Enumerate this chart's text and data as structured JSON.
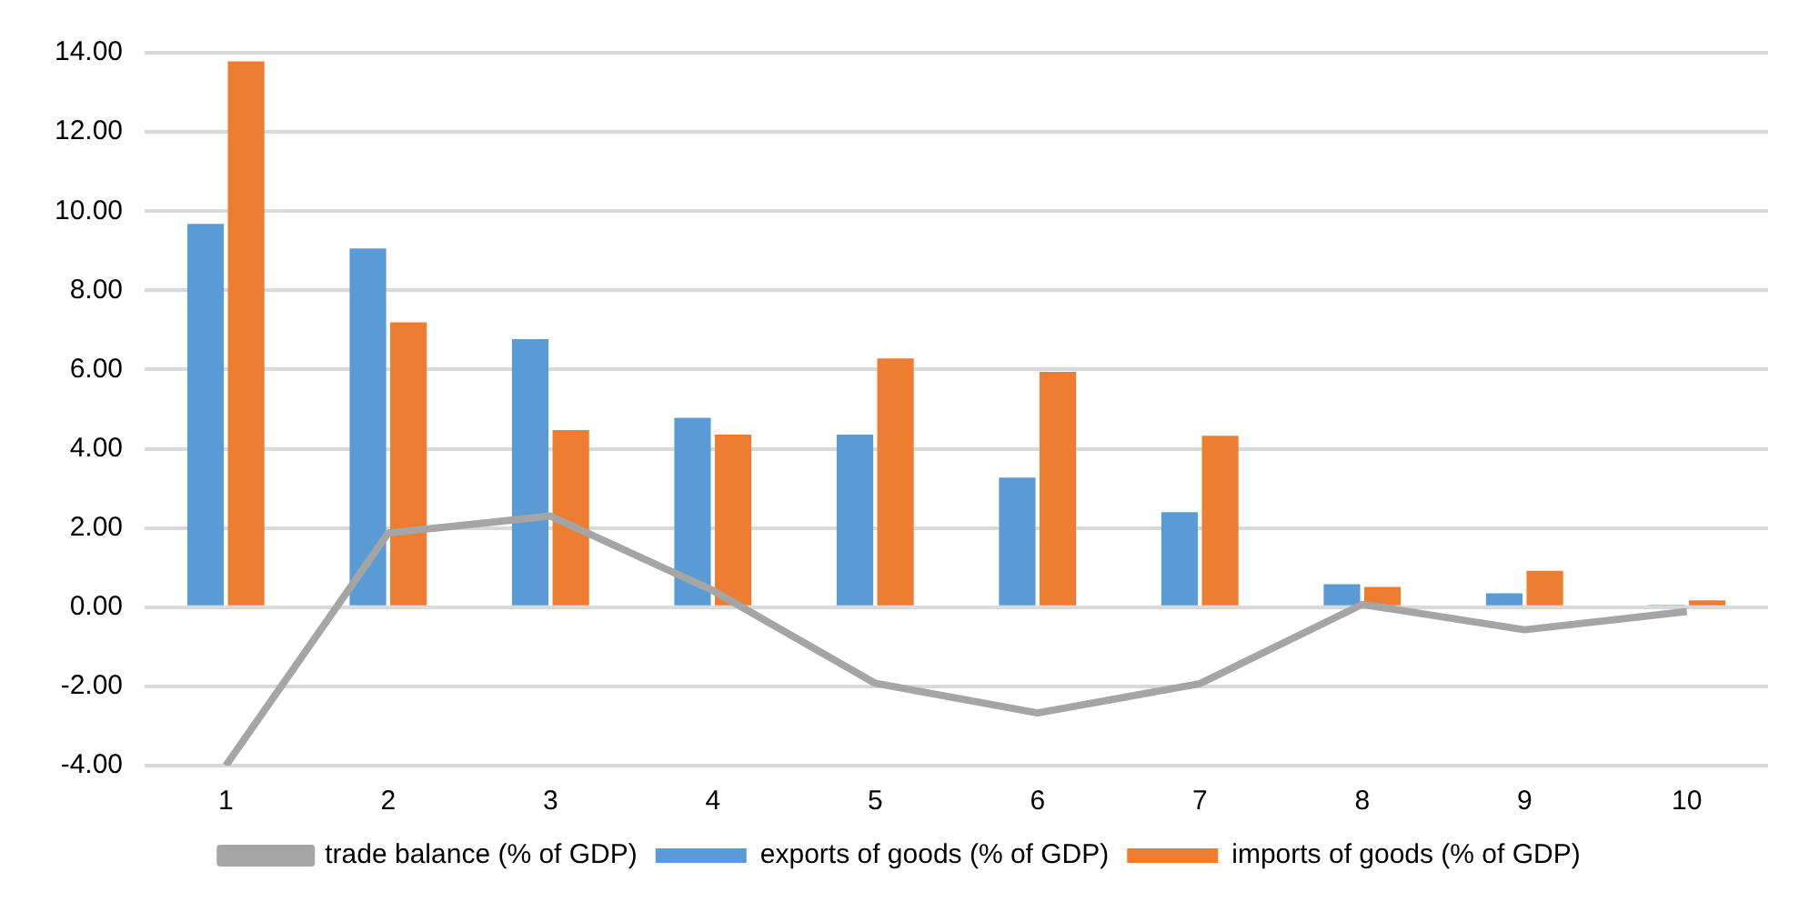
{
  "chart_data": {
    "type": "bar",
    "categories": [
      "1",
      "2",
      "3",
      "4",
      "5",
      "6",
      "7",
      "8",
      "9",
      "10"
    ],
    "series": [
      {
        "name": "exports of goods (% of GDP)",
        "color": "#5b9bd5",
        "values": [
          9.68,
          9.06,
          6.77,
          4.78,
          4.36,
          3.27,
          2.4,
          0.58,
          0.35,
          0.06
        ]
      },
      {
        "name": "imports of goods (% of GDP)",
        "color": "#ed7d31",
        "values": [
          13.78,
          7.19,
          4.47,
          4.36,
          6.28,
          5.94,
          4.33,
          0.51,
          0.92,
          0.17
        ]
      },
      {
        "name": "trade balance (% of GDP)",
        "type": "line",
        "color": "#a5a5a5",
        "marker": "none",
        "values": [
          -4.0,
          1.87,
          2.3,
          0.42,
          -1.92,
          -2.67,
          -1.93,
          0.07,
          -0.57,
          -0.11
        ]
      }
    ],
    "ylim": [
      -4,
      14
    ],
    "yticks": [
      {
        "value": -4,
        "label": "-4.00"
      },
      {
        "value": -2,
        "label": "-2.00"
      },
      {
        "value": 0,
        "label": "0.00"
      },
      {
        "value": 2,
        "label": "2.00"
      },
      {
        "value": 4,
        "label": "4.00"
      },
      {
        "value": 6,
        "label": "6.00"
      },
      {
        "value": 8,
        "label": "8.00"
      },
      {
        "value": 10,
        "label": "10.00"
      },
      {
        "value": 12,
        "label": "12.00"
      },
      {
        "value": 14,
        "label": "14.00"
      }
    ],
    "grid": "y",
    "legend": "bottom"
  }
}
